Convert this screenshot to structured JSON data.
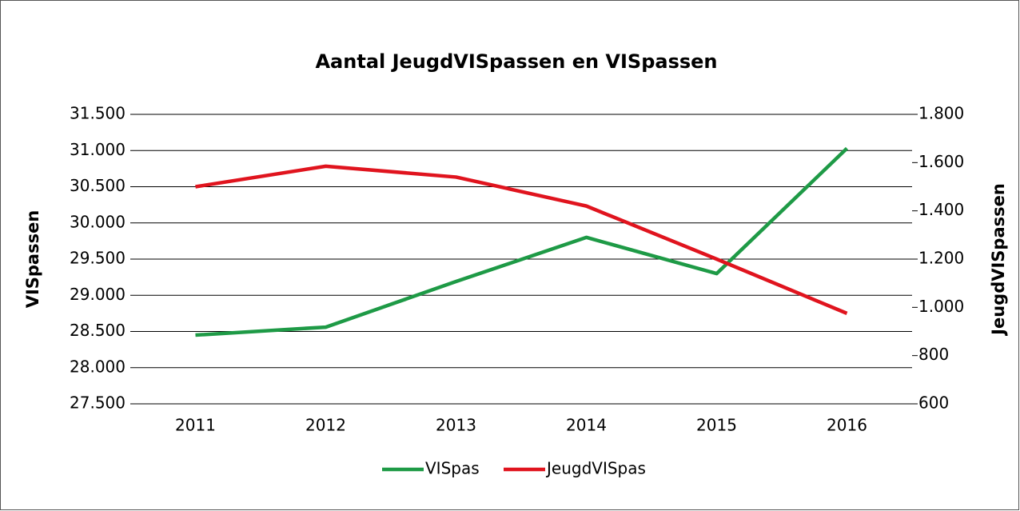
{
  "chart_data": {
    "type": "line",
    "title": "Aantal JeugdVISpassen en VISpassen",
    "ylabel": "VISpassen",
    "y2label": "JeugdVISpassen",
    "categories": [
      "2011",
      "2012",
      "2013",
      "2014",
      "2015",
      "2016"
    ],
    "series": [
      {
        "name": "VISpas",
        "color": "#1e9a46",
        "values": [
          28450,
          28560,
          29190,
          29800,
          29300,
          31030
        ]
      },
      {
        "name": "JeugdVISpas",
        "color": "#e0141e",
        "axis": "y2",
        "values": [
          1500,
          1585,
          1540,
          1420,
          1200,
          975
        ]
      }
    ],
    "ylim": [
      27500,
      31500
    ],
    "yticks": [
      {
        "value": 27500,
        "label": "27.500"
      },
      {
        "value": 28000,
        "label": "28.000"
      },
      {
        "value": 28500,
        "label": "28.500"
      },
      {
        "value": 29000,
        "label": "29.000"
      },
      {
        "value": 29500,
        "label": "29.500"
      },
      {
        "value": 30000,
        "label": "30.000"
      },
      {
        "value": 30500,
        "label": "30.500"
      },
      {
        "value": 31000,
        "label": "31.000"
      },
      {
        "value": 31500,
        "label": "31.500"
      }
    ],
    "y2lim": [
      600,
      1800
    ],
    "y2ticks": [
      600,
      800,
      {
        "value": 1000,
        "label": "1.000"
      },
      {
        "value": 1200,
        "label": "1.200"
      },
      {
        "value": 1400,
        "label": "1.400"
      },
      {
        "value": 1600,
        "label": "1.600"
      },
      {
        "value": 1800,
        "label": "1.800"
      }
    ],
    "grid": true,
    "legend": "bottom"
  }
}
